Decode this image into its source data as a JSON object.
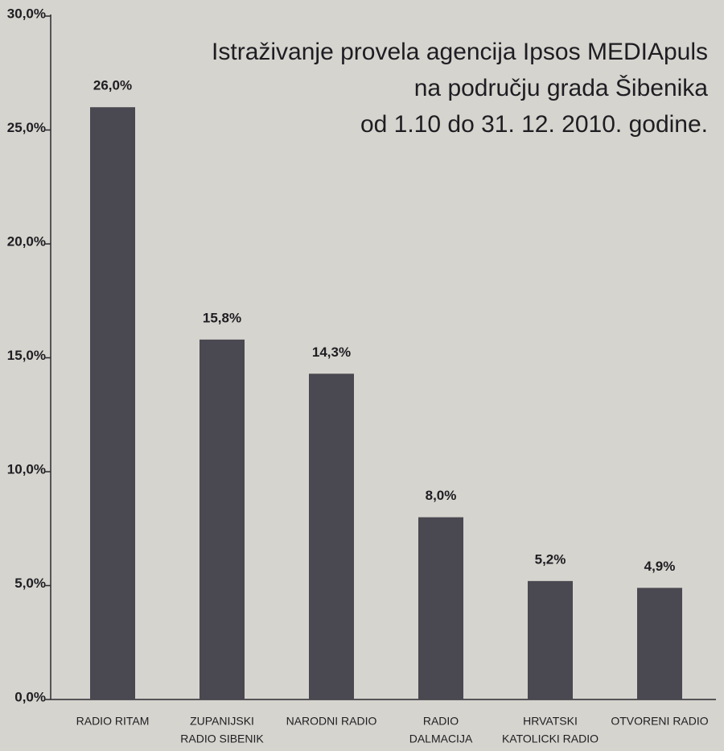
{
  "chart_data": {
    "type": "bar",
    "title": [
      "Istraživanje provela agencija Ipsos MEDIApuls",
      "na području grada Šibenika",
      "od 1.10  do 31. 12. 2010. godine."
    ],
    "categories": [
      [
        "RADIO RITAM"
      ],
      [
        "ZUPANIJSKI",
        "RADIO SIBENIK"
      ],
      [
        "NARODNI RADIO"
      ],
      [
        "RADIO",
        "DALMACIJA"
      ],
      [
        "HRVATSKI",
        "KATOLICKI RADIO"
      ],
      [
        "OTVORENI RADIO"
      ]
    ],
    "values": [
      26.0,
      15.8,
      14.3,
      8.0,
      5.2,
      4.9
    ],
    "value_labels": [
      "26,0%",
      "15,8%",
      "14,3%",
      "8,0%",
      "5,2%",
      "4,9%"
    ],
    "color": "#4a4850",
    "ylim": [
      0,
      30
    ],
    "yticks": [
      {
        "value": 0,
        "label": "0,0%"
      },
      {
        "value": 5,
        "label": "5,0%"
      },
      {
        "value": 10,
        "label": "10,0%"
      },
      {
        "value": 15,
        "label": "15,0%"
      },
      {
        "value": 20,
        "label": "20,0%"
      },
      {
        "value": 25,
        "label": "25,0%"
      },
      {
        "value": 30,
        "label": "30,0%"
      }
    ]
  }
}
